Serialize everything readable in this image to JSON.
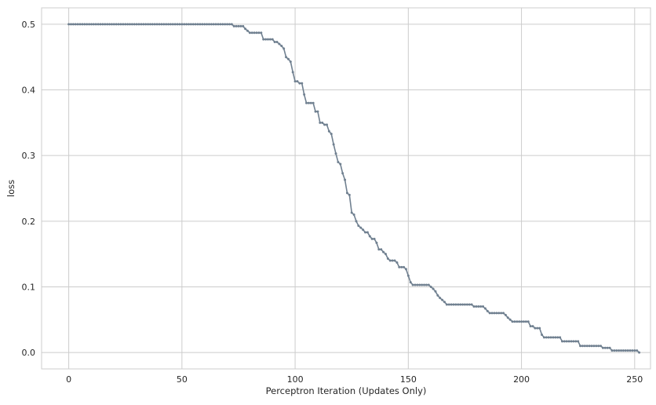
{
  "chart_data": {
    "type": "line",
    "title": "",
    "xlabel": "Perceptron Iteration (Updates Only)",
    "ylabel": "loss",
    "xlim": [
      -12,
      257
    ],
    "ylim": [
      -0.025,
      0.525
    ],
    "xticks": [
      0,
      50,
      100,
      150,
      200,
      250
    ],
    "yticks": [
      0.0,
      0.1,
      0.2,
      0.3,
      0.4,
      0.5
    ],
    "xtick_labels": [
      "0",
      "50",
      "100",
      "150",
      "200",
      "250"
    ],
    "ytick_labels": [
      "0.0",
      "0.1",
      "0.2",
      "0.3",
      "0.4",
      "0.5"
    ],
    "grid": true,
    "legend": "none",
    "colors": {
      "line": "#708090",
      "grid": "#cccccc",
      "background": "#ffffff"
    },
    "marker": "circle",
    "series": [
      {
        "x_start": 0,
        "y": [
          0.5,
          0.5,
          0.5,
          0.5,
          0.5,
          0.5,
          0.5,
          0.5,
          0.5,
          0.5,
          0.5,
          0.5,
          0.5,
          0.5,
          0.5,
          0.5,
          0.5,
          0.5,
          0.5,
          0.5,
          0.5,
          0.5,
          0.5,
          0.5,
          0.5,
          0.5,
          0.5,
          0.5,
          0.5,
          0.5,
          0.5,
          0.5,
          0.5,
          0.5,
          0.5,
          0.5,
          0.5,
          0.5,
          0.5,
          0.5,
          0.5,
          0.5,
          0.5,
          0.5,
          0.5,
          0.5,
          0.5,
          0.5,
          0.5,
          0.5,
          0.5,
          0.5,
          0.5,
          0.5,
          0.5,
          0.5,
          0.5,
          0.5,
          0.5,
          0.5,
          0.5,
          0.5,
          0.5,
          0.5,
          0.5,
          0.5,
          0.5,
          0.5,
          0.5,
          0.5,
          0.5,
          0.5,
          0.5,
          0.497,
          0.497,
          0.497,
          0.497,
          0.497,
          0.493,
          0.49,
          0.487,
          0.487,
          0.487,
          0.487,
          0.487,
          0.487,
          0.477,
          0.477,
          0.477,
          0.477,
          0.477,
          0.473,
          0.473,
          0.47,
          0.467,
          0.463,
          0.45,
          0.447,
          0.443,
          0.427,
          0.413,
          0.413,
          0.41,
          0.41,
          0.393,
          0.38,
          0.38,
          0.38,
          0.38,
          0.367,
          0.367,
          0.35,
          0.35,
          0.347,
          0.347,
          0.337,
          0.333,
          0.317,
          0.303,
          0.29,
          0.287,
          0.273,
          0.263,
          0.243,
          0.24,
          0.213,
          0.21,
          0.2,
          0.193,
          0.19,
          0.187,
          0.183,
          0.183,
          0.177,
          0.173,
          0.173,
          0.167,
          0.157,
          0.157,
          0.153,
          0.15,
          0.143,
          0.14,
          0.14,
          0.14,
          0.137,
          0.13,
          0.13,
          0.13,
          0.127,
          0.117,
          0.107,
          0.103,
          0.103,
          0.103,
          0.103,
          0.103,
          0.103,
          0.103,
          0.103,
          0.1,
          0.097,
          0.093,
          0.087,
          0.083,
          0.08,
          0.077,
          0.073,
          0.073,
          0.073,
          0.073,
          0.073,
          0.073,
          0.073,
          0.073,
          0.073,
          0.073,
          0.073,
          0.073,
          0.07,
          0.07,
          0.07,
          0.07,
          0.07,
          0.067,
          0.063,
          0.06,
          0.06,
          0.06,
          0.06,
          0.06,
          0.06,
          0.06,
          0.057,
          0.053,
          0.05,
          0.047,
          0.047,
          0.047,
          0.047,
          0.047,
          0.047,
          0.047,
          0.047,
          0.04,
          0.04,
          0.037,
          0.037,
          0.037,
          0.027,
          0.023,
          0.023,
          0.023,
          0.023,
          0.023,
          0.023,
          0.023,
          0.023,
          0.017,
          0.017,
          0.017,
          0.017,
          0.017,
          0.017,
          0.017,
          0.017,
          0.01,
          0.01,
          0.01,
          0.01,
          0.01,
          0.01,
          0.01,
          0.01,
          0.01,
          0.01,
          0.007,
          0.007,
          0.007,
          0.007,
          0.003,
          0.003,
          0.003,
          0.003,
          0.003,
          0.003,
          0.003,
          0.003,
          0.003,
          0.003,
          0.003,
          0.003,
          0.0
        ]
      }
    ]
  }
}
